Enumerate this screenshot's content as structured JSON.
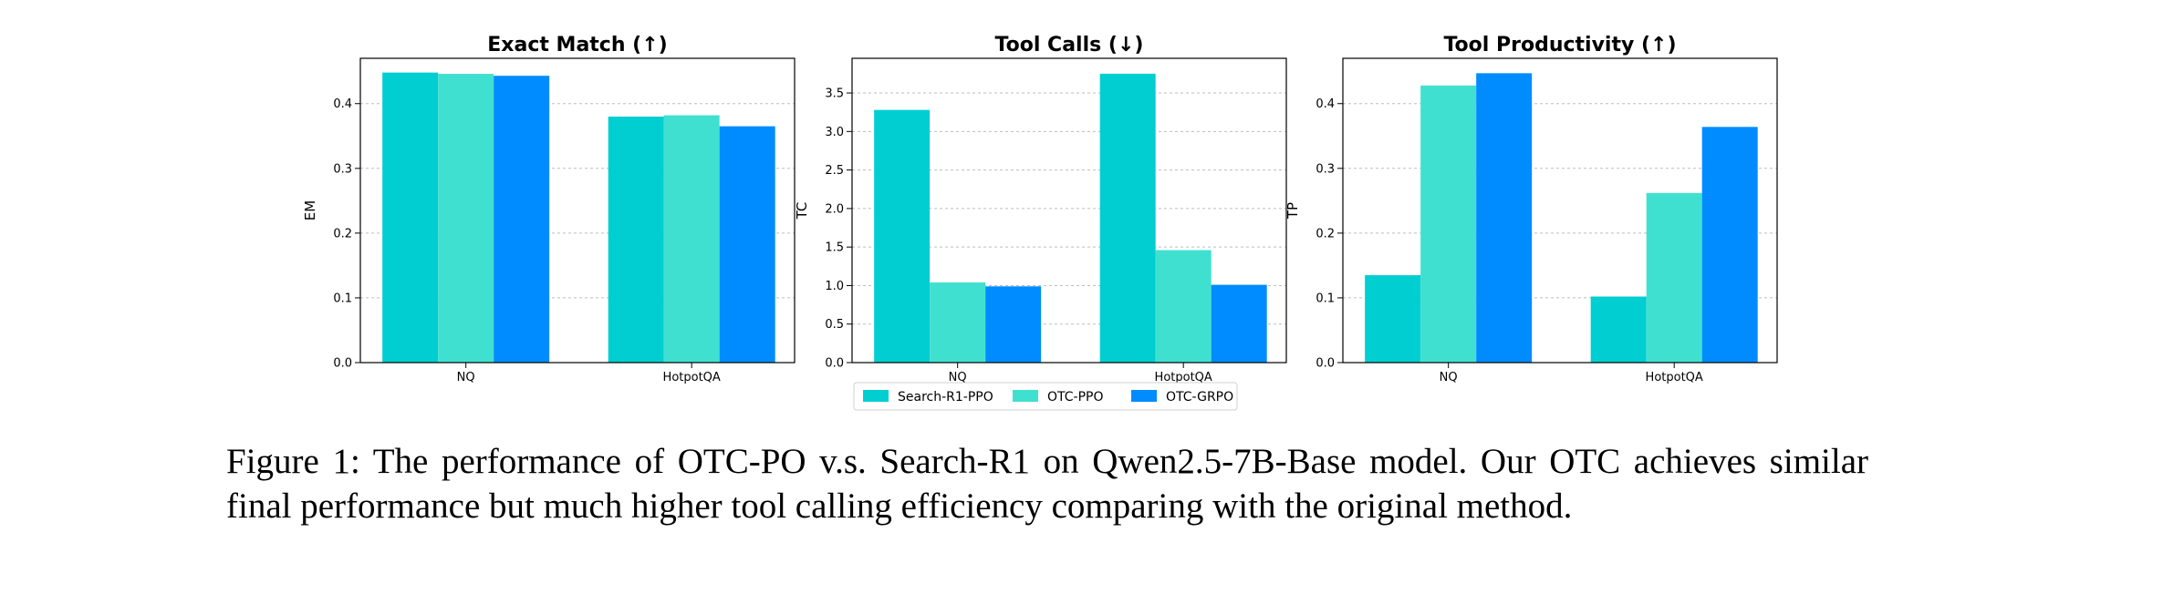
{
  "chart_data": [
    {
      "type": "bar",
      "title": "Exact Match (↑)",
      "xlabel": "",
      "ylabel": "EM",
      "categories": [
        "NQ",
        "HotpotQA"
      ],
      "ylim": [
        0,
        0.47
      ],
      "yticks": [
        "0.0",
        "0.1",
        "0.2",
        "0.3",
        "0.4"
      ],
      "grid": true,
      "series": [
        {
          "name": "Search-R1-PPO",
          "color": "#00CED1",
          "values": [
            0.448,
            0.38
          ]
        },
        {
          "name": "OTC-PPO",
          "color": "#40E0D0",
          "values": [
            0.446,
            0.382
          ]
        },
        {
          "name": "OTC-GRPO",
          "color": "#008CFF",
          "values": [
            0.443,
            0.365
          ]
        }
      ]
    },
    {
      "type": "bar",
      "title": "Tool Calls (↓)",
      "xlabel": "",
      "ylabel": "TC",
      "categories": [
        "NQ",
        "HotpotQA"
      ],
      "ylim": [
        0,
        3.95
      ],
      "yticks": [
        "0.0",
        "0.5",
        "1.0",
        "1.5",
        "2.0",
        "2.5",
        "3.0",
        "3.5"
      ],
      "grid": true,
      "series": [
        {
          "name": "Search-R1-PPO",
          "color": "#00CED1",
          "values": [
            3.28,
            3.75
          ]
        },
        {
          "name": "OTC-PPO",
          "color": "#40E0D0",
          "values": [
            1.04,
            1.46
          ]
        },
        {
          "name": "OTC-GRPO",
          "color": "#008CFF",
          "values": [
            0.99,
            1.01
          ]
        }
      ]
    },
    {
      "type": "bar",
      "title": "Tool Productivity (↑)",
      "xlabel": "",
      "ylabel": "TP",
      "categories": [
        "NQ",
        "HotpotQA"
      ],
      "ylim": [
        0,
        0.47
      ],
      "yticks": [
        "0.0",
        "0.1",
        "0.2",
        "0.3",
        "0.4"
      ],
      "grid": true,
      "series": [
        {
          "name": "Search-R1-PPO",
          "color": "#00CED1",
          "values": [
            0.135,
            0.102
          ]
        },
        {
          "name": "OTC-PPO",
          "color": "#40E0D0",
          "values": [
            0.428,
            0.262
          ]
        },
        {
          "name": "OTC-GRPO",
          "color": "#008CFF",
          "values": [
            0.447,
            0.364
          ]
        }
      ]
    }
  ],
  "legend": {
    "placement": "bottom-center",
    "items": [
      {
        "label": "Search-R1-PPO",
        "color": "#00CED1"
      },
      {
        "label": "OTC-PPO",
        "color": "#40E0D0"
      },
      {
        "label": "OTC-GRPO",
        "color": "#008CFF"
      }
    ]
  },
  "caption": "Figure 1: The performance of OTC-PO v.s.  Search-R1 on Qwen2.5-7B-Base model.  Our OTC achieves similar final performance but much higher tool calling efficiency comparing with the original method."
}
